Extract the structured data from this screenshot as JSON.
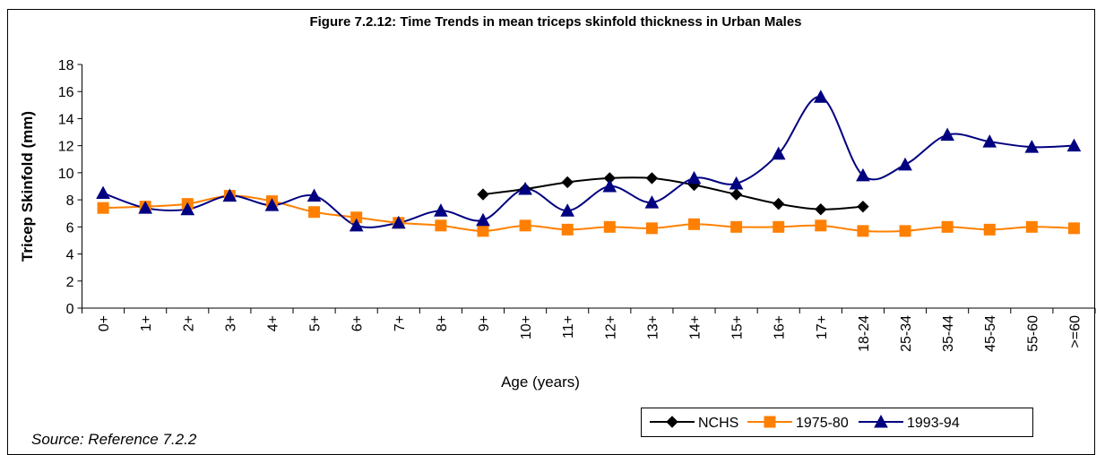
{
  "chart_data": {
    "type": "line",
    "title": "Figure 7.2.12: Time Trends in mean triceps skinfold thickness in Urban Males",
    "x_label": "Age (years)",
    "y_label": "Tricep Skinfold (mm)",
    "source": "Source: Reference 7.2.2",
    "categories": [
      "0+",
      "1+",
      "2+",
      "3+",
      "4+",
      "5+",
      "6+",
      "7+",
      "8+",
      "9+",
      "10+",
      "11+",
      "12+",
      "13+",
      "14+",
      "15+",
      "16+",
      "17+",
      "18-24",
      "25-34",
      "35-44",
      "45-54",
      "55-60",
      ">=60"
    ],
    "ylim": [
      0,
      18
    ],
    "yticks": [
      0,
      2,
      4,
      6,
      8,
      10,
      12,
      14,
      16,
      18
    ],
    "smooth": true,
    "series": [
      {
        "name": "NCHS",
        "color": "#000000",
        "marker": "diamond",
        "values": [
          null,
          null,
          null,
          null,
          null,
          null,
          null,
          null,
          null,
          8.4,
          8.8,
          9.3,
          9.6,
          9.6,
          9.1,
          8.4,
          7.7,
          7.3,
          7.5,
          null,
          null,
          null,
          null,
          null
        ]
      },
      {
        "name": "1975-80",
        "color": "#ff8000",
        "marker": "square",
        "values": [
          7.4,
          7.5,
          7.7,
          8.3,
          7.9,
          7.1,
          6.7,
          6.3,
          6.1,
          5.7,
          6.1,
          5.8,
          6.0,
          5.9,
          6.2,
          6.0,
          6.0,
          6.1,
          5.7,
          5.7,
          6.0,
          5.8,
          6.0,
          5.9
        ]
      },
      {
        "name": "1993-94",
        "color": "#000080",
        "marker": "triangle",
        "values": [
          8.5,
          7.4,
          7.3,
          8.3,
          7.6,
          8.3,
          6.1,
          6.3,
          7.2,
          6.5,
          8.8,
          7.2,
          9.0,
          7.8,
          9.6,
          9.2,
          11.4,
          15.6,
          9.8,
          10.6,
          12.8,
          12.3,
          11.9,
          12.0
        ]
      }
    ]
  }
}
